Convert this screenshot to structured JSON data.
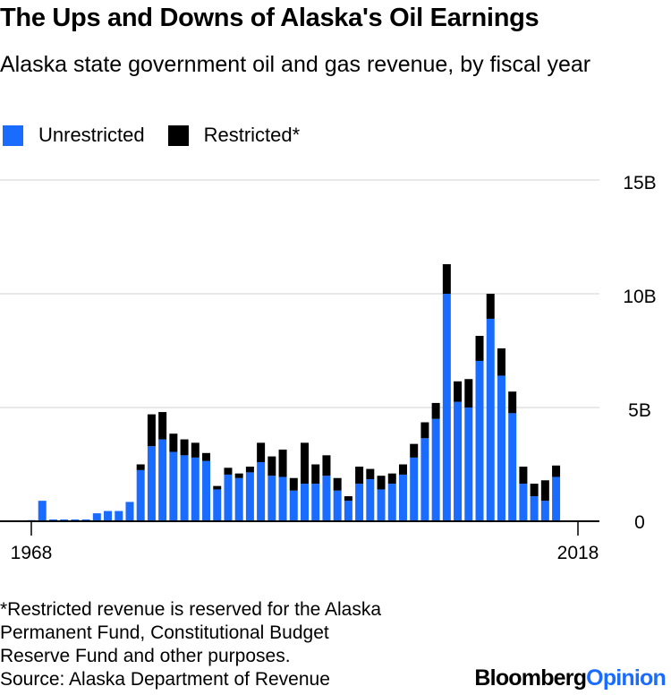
{
  "title": "The Ups and Downs of Alaska's Oil Earnings",
  "subtitle": "Alaska state government oil and gas revenue, by fiscal year",
  "colors": {
    "unrestricted": "#1a6bff",
    "restricted": "#000000",
    "grid": "#e0e0e0",
    "axis": "#000000"
  },
  "legend": {
    "unrestricted": "Unrestricted",
    "restricted": "Restricted*"
  },
  "footnote": [
    "*Restricted revenue is reserved for the Alaska",
    "Permanent Fund, Constitutional Budget",
    "Reserve Fund and other purposes.",
    "Source: Alaska Department of Revenue"
  ],
  "brand": {
    "name": "Bloomberg",
    "section": "Opinion"
  },
  "chart_data": {
    "type": "bar",
    "stacked": true,
    "x": [
      1968,
      1969,
      1970,
      1971,
      1972,
      1973,
      1974,
      1975,
      1976,
      1977,
      1978,
      1979,
      1980,
      1981,
      1982,
      1983,
      1984,
      1985,
      1986,
      1987,
      1988,
      1989,
      1990,
      1991,
      1992,
      1993,
      1994,
      1995,
      1996,
      1997,
      1998,
      1999,
      2000,
      2001,
      2002,
      2003,
      2004,
      2005,
      2006,
      2007,
      2008,
      2009,
      2010,
      2011,
      2012,
      2013,
      2014,
      2015,
      2016,
      2017,
      2018
    ],
    "x_tick_labels": [
      "1968",
      "2018"
    ],
    "y_tick_labels": [
      "15B",
      "10B",
      "5B",
      "0"
    ],
    "y_ticks": [
      15,
      10,
      5,
      0
    ],
    "ylim": [
      0,
      15
    ],
    "y_unit": "billions of dollars",
    "grid": true,
    "legend_position": "top-left",
    "series": [
      {
        "name": "Unrestricted",
        "color": "#1a6bff",
        "values": [
          0.05,
          0.9,
          0.08,
          0.08,
          0.08,
          0.08,
          0.35,
          0.45,
          0.45,
          0.85,
          2.25,
          3.3,
          3.6,
          3.05,
          2.9,
          2.8,
          2.65,
          1.4,
          2.05,
          1.9,
          2.15,
          2.6,
          2.0,
          1.95,
          1.35,
          1.65,
          1.65,
          2.0,
          1.35,
          0.9,
          1.65,
          1.85,
          1.4,
          1.65,
          2.05,
          2.8,
          3.65,
          4.5,
          10.0,
          5.25,
          5.0,
          7.05,
          8.9,
          6.4,
          4.75,
          1.65,
          1.1,
          0.9,
          1.95,
          0,
          0
        ]
      },
      {
        "name": "Restricted*",
        "color": "#000000",
        "values": [
          0,
          0,
          0,
          0,
          0,
          0,
          0,
          0,
          0,
          0,
          0.25,
          1.4,
          1.2,
          0.8,
          0.7,
          0.65,
          0.35,
          0.15,
          0.3,
          0.2,
          0.25,
          0.85,
          0.85,
          1.2,
          0.55,
          1.8,
          0.85,
          0.9,
          0.55,
          0.2,
          0.75,
          0.45,
          0.6,
          0.45,
          0.45,
          0.6,
          0.7,
          0.7,
          1.3,
          0.9,
          1.25,
          1.1,
          1.1,
          1.2,
          0.95,
          0.75,
          0.55,
          0.9,
          0.5,
          0,
          0
        ]
      }
    ]
  }
}
